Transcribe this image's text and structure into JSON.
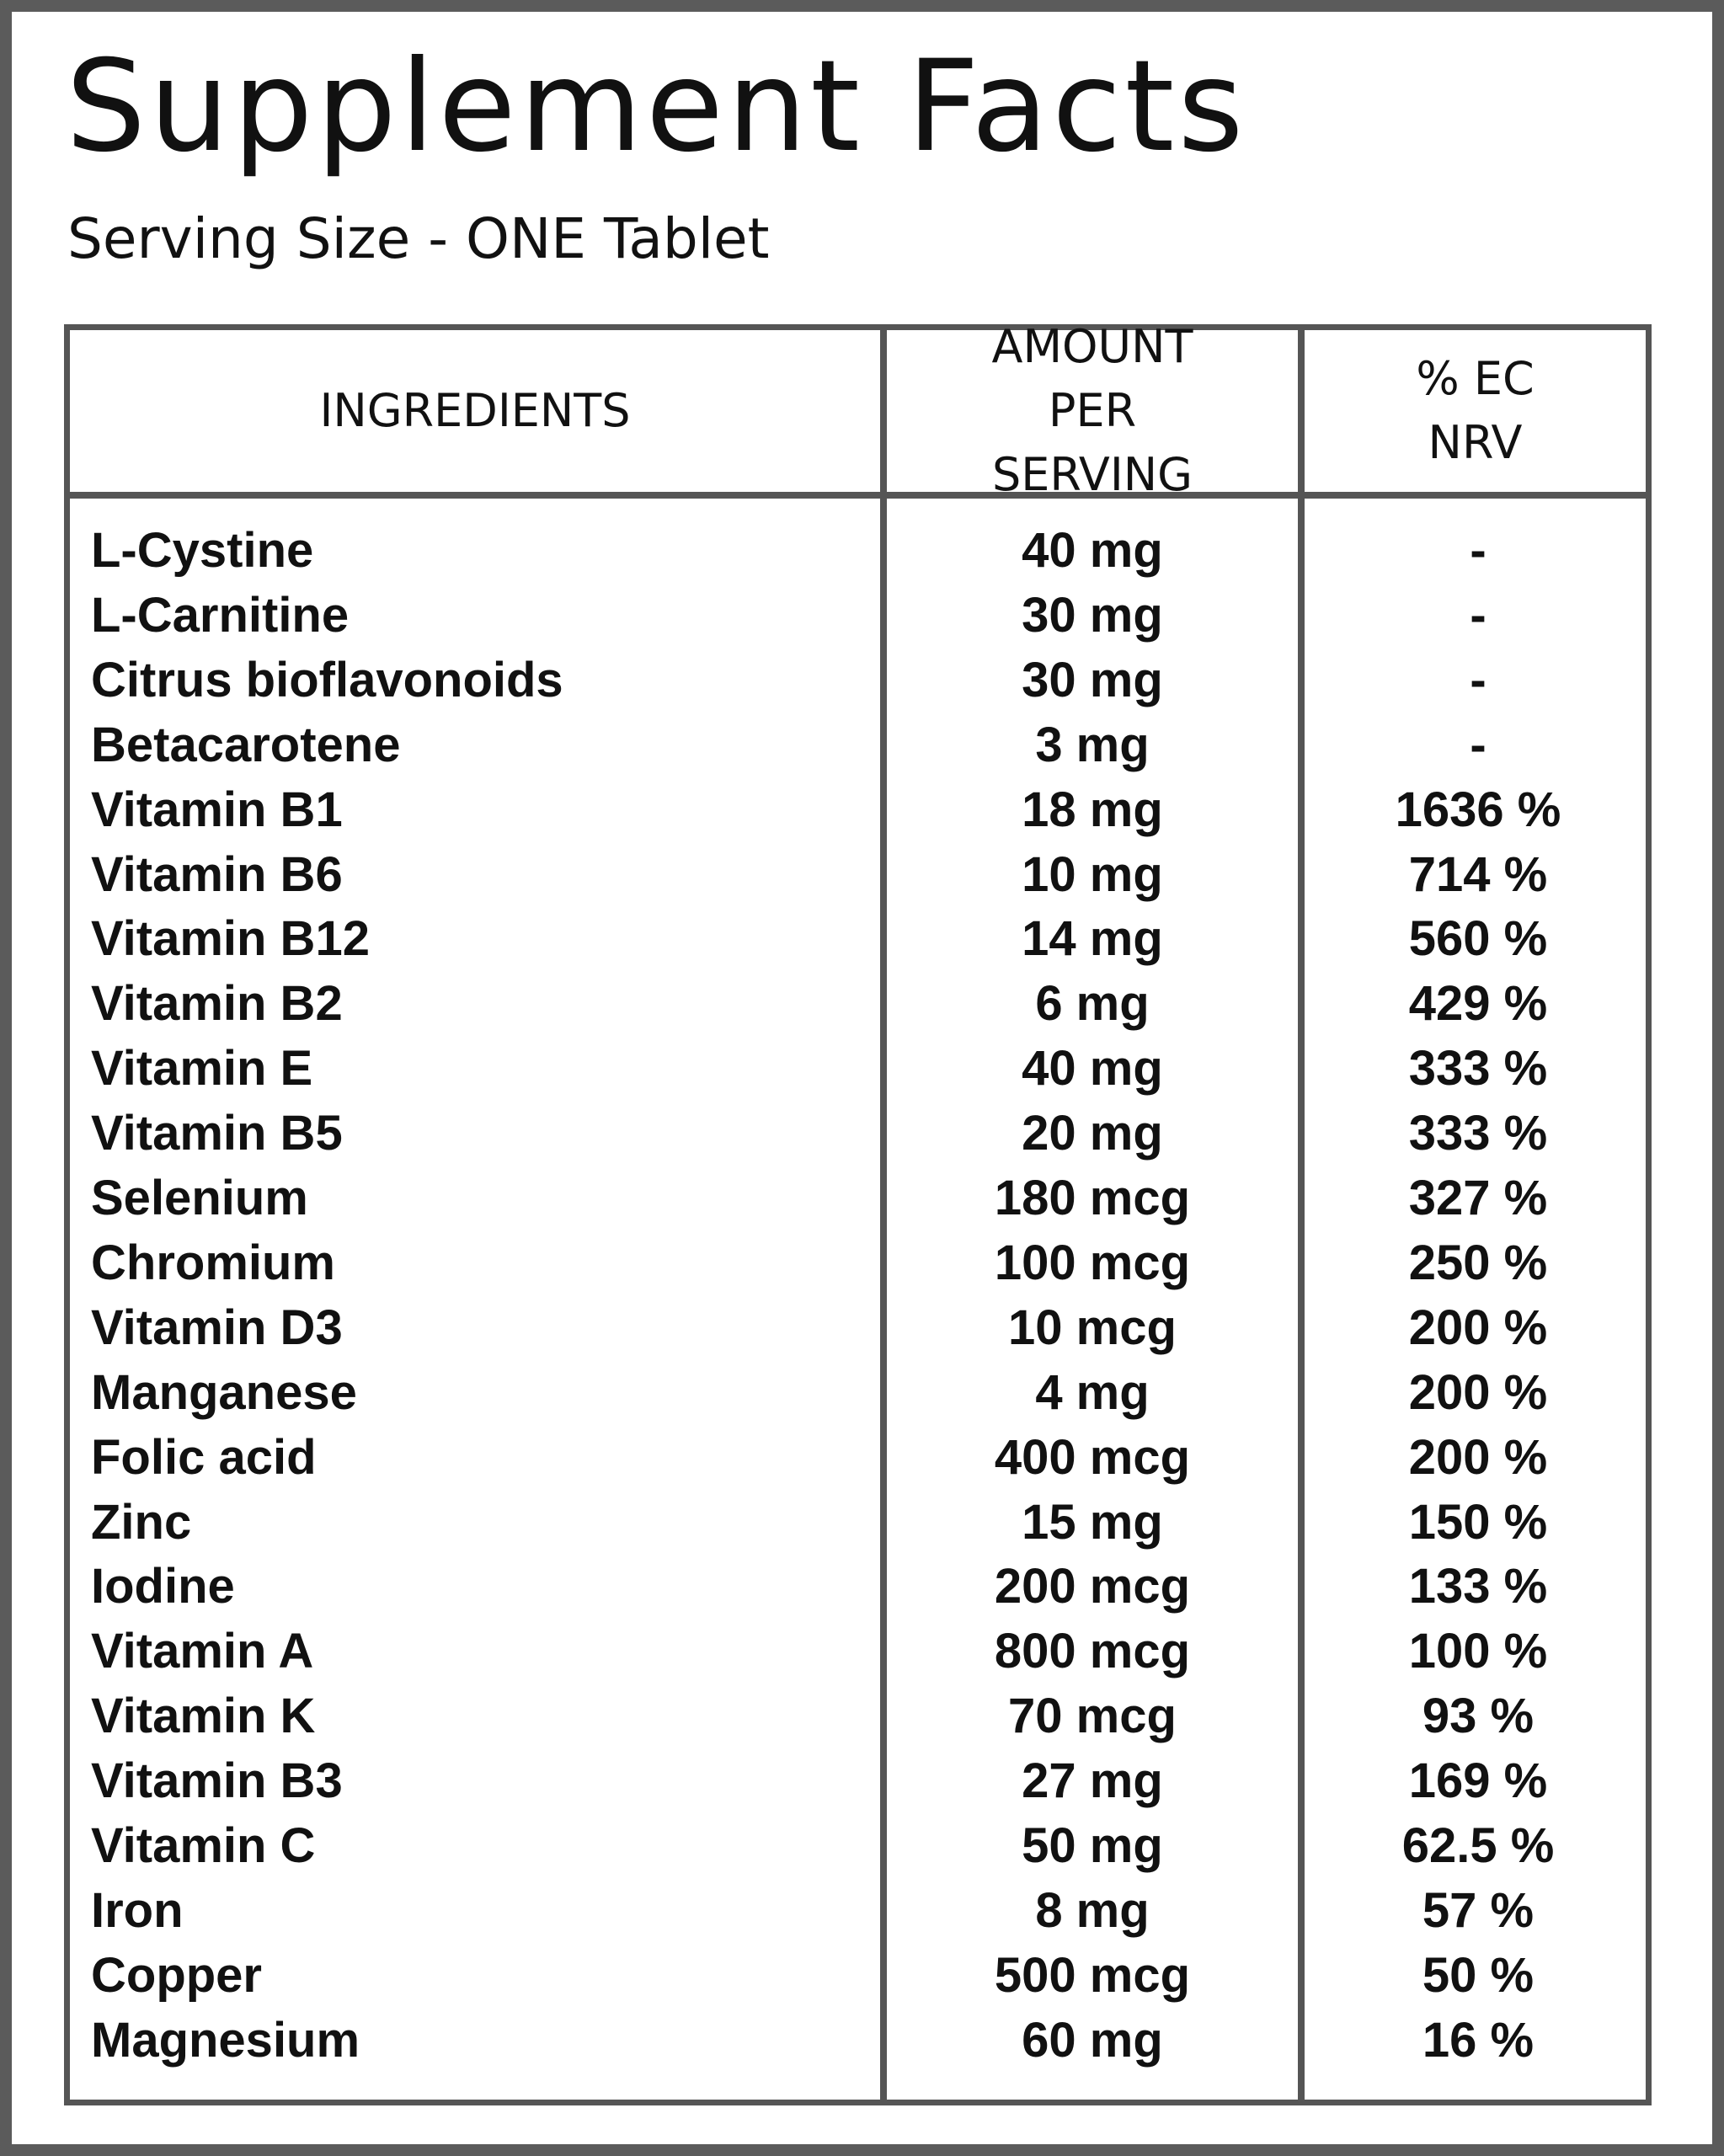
{
  "header": {
    "title": "Supplement Facts",
    "serving": "Serving Size - ONE Tablet"
  },
  "table": {
    "columns": [
      "INGREDIENTS",
      "AMOUNT PER SERVING",
      "% EC NRV"
    ],
    "rows": [
      [
        "L-Cystine",
        "40 mg",
        "-"
      ],
      [
        "L-Carnitine",
        "30 mg",
        "-"
      ],
      [
        "Citrus bioflavonoids",
        "30 mg",
        "-"
      ],
      [
        "Betacarotene",
        "3 mg",
        "-"
      ],
      [
        "Vitamin B1",
        "18 mg",
        "1636 %"
      ],
      [
        "Vitamin B6",
        "10 mg",
        "714 %"
      ],
      [
        "Vitamin B12",
        "14 mg",
        "560 %"
      ],
      [
        "Vitamin B2",
        "6 mg",
        "429 %"
      ],
      [
        "Vitamin E",
        "40 mg",
        "333 %"
      ],
      [
        "Vitamin B5",
        "20 mg",
        "333 %"
      ],
      [
        "Selenium",
        "180 mcg",
        "327 %"
      ],
      [
        "Chromium",
        "100 mcg",
        "250 %"
      ],
      [
        "Vitamin D3",
        "10 mcg",
        "200 %"
      ],
      [
        "Manganese",
        "4 mg",
        "200 %"
      ],
      [
        "Folic acid",
        "400 mcg",
        "200 %"
      ],
      [
        "Zinc",
        "15 mg",
        "150 %"
      ],
      [
        "Iodine",
        "200 mcg",
        "133 %"
      ],
      [
        "Vitamin A",
        "800 mcg",
        "100 %"
      ],
      [
        "Vitamin K",
        "70 mcg",
        "93 %"
      ],
      [
        "Vitamin B3",
        "27 mg",
        "169 %"
      ],
      [
        "Vitamin C",
        "50 mg",
        "62.5 %"
      ],
      [
        "Iron",
        "8 mg",
        "57 %"
      ],
      [
        "Copper",
        "500 mcg",
        "50 %"
      ],
      [
        "Magnesium",
        "60 mg",
        "16 %"
      ]
    ]
  }
}
